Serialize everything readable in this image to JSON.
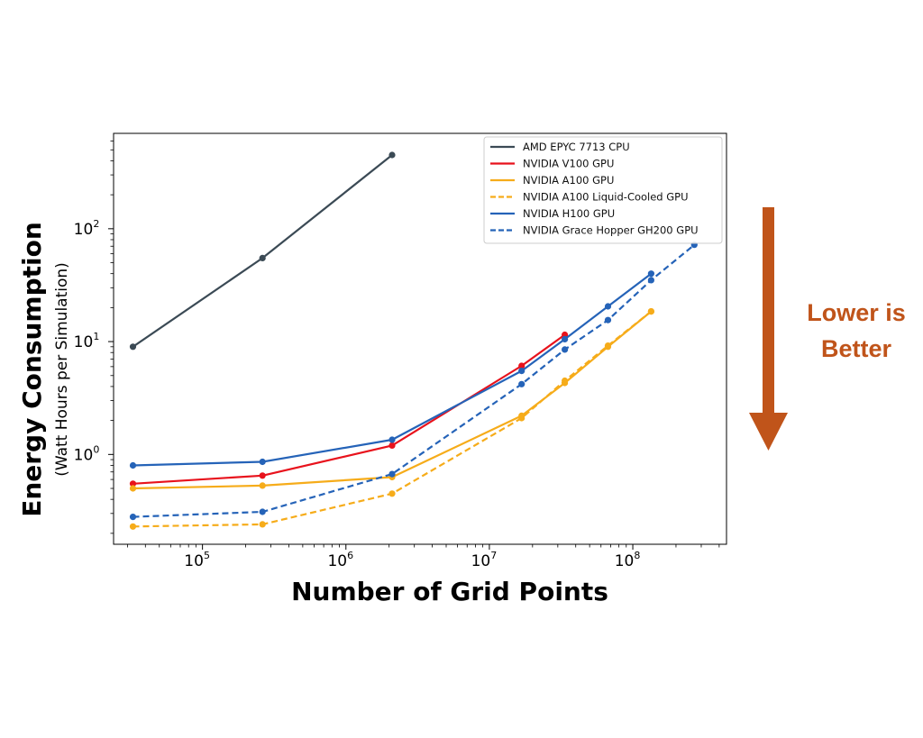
{
  "chart_data": {
    "type": "line",
    "xlabel": "Number of Grid Points",
    "ylabel": "Energy Consumption",
    "ylabel_sub": "(Watt Hours per Simulation)",
    "xscale": "log",
    "yscale": "log",
    "xlim": [
      24000,
      450000000
    ],
    "ylim": [
      0.16,
      700
    ],
    "xticks": [
      {
        "base": "10",
        "exp": "5",
        "value": 100000
      },
      {
        "base": "10",
        "exp": "6",
        "value": 1000000
      },
      {
        "base": "10",
        "exp": "7",
        "value": 10000000
      },
      {
        "base": "10",
        "exp": "8",
        "value": 100000000
      }
    ],
    "yticks": [
      {
        "base": "10",
        "exp": "0",
        "value": 1
      },
      {
        "base": "10",
        "exp": "1",
        "value": 10
      },
      {
        "base": "10",
        "exp": "2",
        "value": 100
      }
    ],
    "grid": false,
    "legend_position": "top-right",
    "series": [
      {
        "name": "AMD EPYC 7713 CPU",
        "color": "#3b4a55",
        "dash": "solid",
        "x": [
          32768,
          262144,
          2097152
        ],
        "y": [
          9,
          55,
          450
        ]
      },
      {
        "name": "NVIDIA V100 GPU",
        "color": "#e8121c",
        "dash": "solid",
        "x": [
          32768,
          262144,
          2097152,
          16777216,
          33554432
        ],
        "y": [
          0.55,
          0.65,
          1.2,
          6.1,
          11.5
        ]
      },
      {
        "name": "NVIDIA A100 GPU",
        "color": "#f6ac1a",
        "dash": "solid",
        "x": [
          32768,
          262144,
          2097152,
          16777216,
          33554432,
          67108864,
          134217728
        ],
        "y": [
          0.5,
          0.53,
          0.63,
          2.2,
          4.3,
          9,
          18.5
        ]
      },
      {
        "name": "NVIDIA A100 Liquid-Cooled GPU",
        "color": "#f6ac1a",
        "dash": "dashed",
        "x": [
          32768,
          262144,
          2097152,
          16777216,
          33554432,
          67108864,
          134217728
        ],
        "y": [
          0.23,
          0.24,
          0.45,
          2.1,
          4.5,
          9.2,
          18.5
        ]
      },
      {
        "name": "NVIDIA H100 GPU",
        "color": "#2563b8",
        "dash": "solid",
        "x": [
          32768,
          262144,
          2097152,
          16777216,
          33554432,
          67108864,
          134217728
        ],
        "y": [
          0.8,
          0.86,
          1.35,
          5.5,
          10.5,
          20.5,
          40
        ]
      },
      {
        "name": "NVIDIA Grace Hopper GH200 GPU",
        "color": "#2563b8",
        "dash": "dashed",
        "x": [
          32768,
          262144,
          2097152,
          16777216,
          33554432,
          67108864,
          134217728,
          268435456
        ],
        "y": [
          0.28,
          0.31,
          0.67,
          4.2,
          8.5,
          15.5,
          35,
          72
        ]
      }
    ]
  },
  "annotation": {
    "line1": "Lower is",
    "line2": "Better",
    "color": "#c0541a",
    "arrow": "down-arrow"
  }
}
